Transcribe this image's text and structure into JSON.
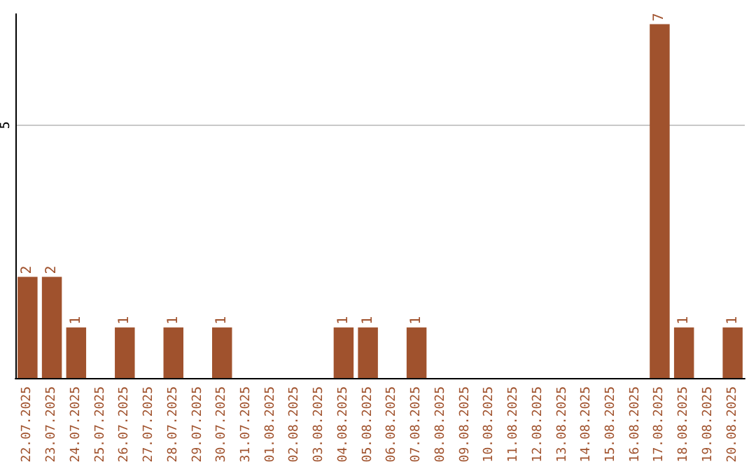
{
  "chart_data": {
    "type": "bar",
    "categories": [
      "22.07.2025",
      "23.07.2025",
      "24.07.2025",
      "25.07.2025",
      "26.07.2025",
      "27.07.2025",
      "28.07.2025",
      "29.07.2025",
      "30.07.2025",
      "31.07.2025",
      "01.08.2025",
      "02.08.2025",
      "03.08.2025",
      "04.08.2025",
      "05.08.2025",
      "06.08.2025",
      "07.08.2025",
      "08.08.2025",
      "09.08.2025",
      "10.08.2025",
      "11.08.2025",
      "12.08.2025",
      "13.08.2025",
      "14.08.2025",
      "15.08.2025",
      "16.08.2025",
      "17.08.2025",
      "18.08.2025",
      "19.08.2025",
      "20.08.2025"
    ],
    "values": [
      2,
      2,
      1,
      0,
      1,
      0,
      1,
      0,
      1,
      0,
      0,
      0,
      0,
      1,
      1,
      0,
      1,
      0,
      0,
      0,
      0,
      0,
      0,
      0,
      0,
      0,
      7,
      1,
      0,
      1
    ],
    "value_labels": [
      "2",
      "2",
      "1",
      null,
      "1",
      null,
      "1",
      null,
      "1",
      null,
      null,
      null,
      null,
      "1",
      "1",
      null,
      "1",
      null,
      null,
      null,
      null,
      null,
      null,
      null,
      null,
      null,
      "7",
      "1",
      null,
      "1"
    ],
    "color": "#a0522d",
    "ylim": [
      0,
      7.2
    ],
    "yticks": [
      5
    ],
    "grid": "y"
  }
}
